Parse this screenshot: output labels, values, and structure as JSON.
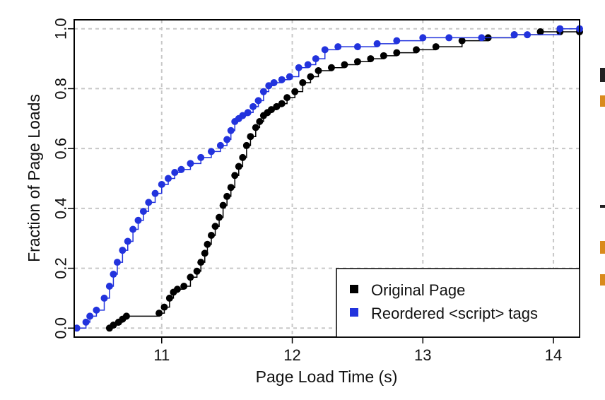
{
  "chart_data": {
    "type": "line",
    "xlabel": "Page Load Time (s)",
    "ylabel": "Fraction of Page Loads",
    "xlim": [
      10.33,
      14.2
    ],
    "ylim": [
      -0.03,
      1.03
    ],
    "x_ticks": [
      11,
      12,
      13,
      14
    ],
    "y_ticks": [
      "0.0",
      "0.2",
      "0.4",
      "0.6",
      "0.8",
      "1.0"
    ],
    "grid": true,
    "legend_position": "bottom-right",
    "series": [
      {
        "name": "Original Page",
        "color": "#000000",
        "x": [
          10.6,
          10.63,
          10.67,
          10.7,
          10.73,
          10.98,
          11.02,
          11.06,
          11.09,
          11.12,
          11.17,
          11.22,
          11.27,
          11.3,
          11.33,
          11.35,
          11.38,
          11.41,
          11.44,
          11.47,
          11.5,
          11.53,
          11.56,
          11.59,
          11.62,
          11.65,
          11.68,
          11.72,
          11.75,
          11.78,
          11.81,
          11.84,
          11.88,
          11.92,
          11.96,
          12.02,
          12.08,
          12.14,
          12.2,
          12.3,
          12.4,
          12.5,
          12.6,
          12.7,
          12.8,
          12.95,
          13.1,
          13.3,
          13.5,
          13.7,
          13.9,
          14.05,
          14.2
        ],
        "y": [
          0.0,
          0.01,
          0.02,
          0.03,
          0.04,
          0.05,
          0.07,
          0.1,
          0.12,
          0.13,
          0.14,
          0.17,
          0.19,
          0.22,
          0.25,
          0.28,
          0.31,
          0.34,
          0.37,
          0.41,
          0.44,
          0.47,
          0.51,
          0.54,
          0.57,
          0.61,
          0.64,
          0.67,
          0.69,
          0.71,
          0.72,
          0.73,
          0.74,
          0.75,
          0.77,
          0.79,
          0.82,
          0.84,
          0.86,
          0.87,
          0.88,
          0.89,
          0.9,
          0.91,
          0.92,
          0.93,
          0.94,
          0.96,
          0.97,
          0.98,
          0.99,
          0.99,
          0.99
        ]
      },
      {
        "name": "Reordered <script> tags",
        "color": "#2233dd",
        "x": [
          10.35,
          10.42,
          10.45,
          10.5,
          10.56,
          10.6,
          10.63,
          10.66,
          10.7,
          10.74,
          10.78,
          10.82,
          10.86,
          10.9,
          10.95,
          11.0,
          11.05,
          11.1,
          11.15,
          11.22,
          11.3,
          11.38,
          11.45,
          11.5,
          11.53,
          11.56,
          11.59,
          11.62,
          11.66,
          11.7,
          11.74,
          11.78,
          11.82,
          11.86,
          11.92,
          11.98,
          12.05,
          12.12,
          12.18,
          12.25,
          12.35,
          12.5,
          12.65,
          12.8,
          13.0,
          13.2,
          13.45,
          13.7,
          13.8,
          14.05,
          14.2
        ],
        "y": [
          0.0,
          0.02,
          0.04,
          0.06,
          0.1,
          0.14,
          0.18,
          0.22,
          0.26,
          0.29,
          0.33,
          0.36,
          0.39,
          0.42,
          0.45,
          0.48,
          0.5,
          0.52,
          0.53,
          0.55,
          0.57,
          0.59,
          0.61,
          0.63,
          0.66,
          0.69,
          0.7,
          0.71,
          0.72,
          0.74,
          0.76,
          0.79,
          0.81,
          0.82,
          0.83,
          0.84,
          0.87,
          0.88,
          0.9,
          0.93,
          0.94,
          0.94,
          0.95,
          0.96,
          0.97,
          0.97,
          0.97,
          0.98,
          0.98,
          1.0,
          1.0
        ]
      }
    ]
  }
}
